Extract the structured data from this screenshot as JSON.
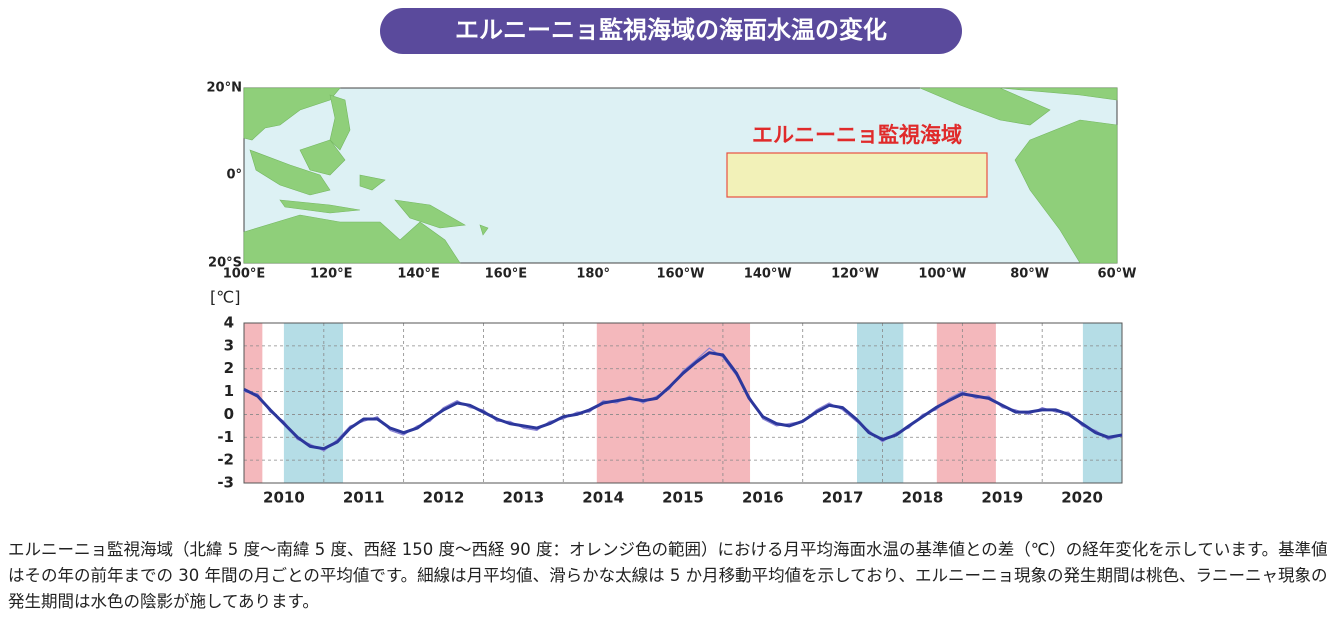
{
  "title": "エルニーニョ監視海域の海面水温の変化",
  "map": {
    "lat_labels": [
      "20°N",
      "0°",
      "20°S"
    ],
    "lon_labels": [
      "100°E",
      "120°E",
      "140°E",
      "160°E",
      "180°",
      "160°W",
      "140°W",
      "120°W",
      "100°W",
      "80°W",
      "60°W"
    ],
    "region_label": "エルニーニョ監視海域"
  },
  "chart_data": {
    "type": "line",
    "y_unit_label": "[℃]",
    "x": [
      2010,
      2010.17,
      2010.33,
      2010.5,
      2010.67,
      2010.83,
      2011,
      2011.17,
      2011.33,
      2011.5,
      2011.67,
      2011.83,
      2012,
      2012.17,
      2012.33,
      2012.5,
      2012.67,
      2012.83,
      2013,
      2013.17,
      2013.33,
      2013.5,
      2013.67,
      2013.83,
      2014,
      2014.17,
      2014.33,
      2014.5,
      2014.67,
      2014.83,
      2015,
      2015.17,
      2015.33,
      2015.5,
      2015.67,
      2015.83,
      2016,
      2016.17,
      2016.33,
      2016.5,
      2016.67,
      2016.83,
      2017,
      2017.17,
      2017.33,
      2017.5,
      2017.67,
      2017.83,
      2018,
      2018.17,
      2018.33,
      2018.5,
      2018.67,
      2018.83,
      2019,
      2019.17,
      2019.33,
      2019.5,
      2019.67,
      2019.83,
      2020,
      2020.17,
      2020.33,
      2020.5,
      2020.67,
      2020.83,
      2021
    ],
    "xlim": [
      2010,
      2021
    ],
    "xticks": [
      {
        "value": 2010.5,
        "label": "2010"
      },
      {
        "value": 2011.5,
        "label": "2011"
      },
      {
        "value": 2012.5,
        "label": "2012"
      },
      {
        "value": 2013.5,
        "label": "2013"
      },
      {
        "value": 2014.5,
        "label": "2014"
      },
      {
        "value": 2015.5,
        "label": "2015"
      },
      {
        "value": 2016.5,
        "label": "2016"
      },
      {
        "value": 2017.5,
        "label": "2017"
      },
      {
        "value": 2018.5,
        "label": "2018"
      },
      {
        "value": 2019.5,
        "label": "2019"
      },
      {
        "value": 2020.5,
        "label": "2020"
      }
    ],
    "x_gridlines": [
      2011,
      2012,
      2013,
      2014,
      2015,
      2016,
      2017,
      2018,
      2019,
      2020
    ],
    "ylim": [
      -3,
      4
    ],
    "yticks": [
      -3,
      -2,
      -1,
      0,
      1,
      2,
      3,
      4
    ],
    "grid": true,
    "shading": [
      {
        "start": 2010,
        "end": 2010.23,
        "color": "#f4b8bc"
      },
      {
        "start": 2010.5,
        "end": 2011.24,
        "color": "#b5dde6"
      },
      {
        "start": 2014.42,
        "end": 2016.34,
        "color": "#f4b8bc"
      },
      {
        "start": 2017.68,
        "end": 2018.26,
        "color": "#b5dde6"
      },
      {
        "start": 2018.68,
        "end": 2019.42,
        "color": "#f4b8bc"
      },
      {
        "start": 2020.51,
        "end": 2021,
        "color": "#b5dde6"
      }
    ],
    "series": [
      {
        "color": "#8c84d4",
        "width": 1.2,
        "values": [
          1.0,
          0.9,
          0.1,
          -0.3,
          -1.1,
          -1.3,
          -1.6,
          -1.1,
          -0.5,
          -0.3,
          -0.1,
          -0.7,
          -0.9,
          -0.5,
          -0.3,
          0.3,
          0.6,
          0.3,
          0.2,
          -0.3,
          -0.3,
          -0.6,
          -0.7,
          -0.3,
          -0.2,
          0.1,
          0.1,
          0.6,
          0.5,
          0.8,
          0.5,
          0.8,
          1.1,
          1.9,
          2.4,
          2.9,
          2.5,
          1.7,
          0.8,
          -0.2,
          -0.5,
          -0.4,
          -0.3,
          0.2,
          0.5,
          0.2,
          -0.3,
          -0.7,
          -1.2,
          -0.8,
          -0.6,
          0.0,
          0.2,
          0.7,
          1.0,
          0.7,
          0.8,
          0.3,
          0.2,
          0.0,
          0.3,
          0.1,
          0.1,
          -0.5,
          -0.7,
          -1.1,
          -0.9
        ]
      },
      {
        "color": "#2c379c",
        "width": 3,
        "values": [
          1.1,
          0.8,
          0.2,
          -0.4,
          -1.0,
          -1.4,
          -1.5,
          -1.2,
          -0.6,
          -0.2,
          -0.2,
          -0.6,
          -0.8,
          -0.6,
          -0.2,
          0.2,
          0.5,
          0.4,
          0.1,
          -0.2,
          -0.4,
          -0.5,
          -0.6,
          -0.4,
          -0.1,
          0.0,
          0.2,
          0.5,
          0.6,
          0.7,
          0.6,
          0.7,
          1.2,
          1.8,
          2.3,
          2.7,
          2.6,
          1.8,
          0.7,
          -0.1,
          -0.4,
          -0.5,
          -0.3,
          0.1,
          0.4,
          0.3,
          -0.2,
          -0.8,
          -1.1,
          -0.9,
          -0.5,
          -0.1,
          0.3,
          0.6,
          0.9,
          0.8,
          0.7,
          0.4,
          0.1,
          0.1,
          0.2,
          0.2,
          0.0,
          -0.4,
          -0.8,
          -1.0,
          -0.9
        ]
      }
    ]
  },
  "caption": "エルニーニョ監視海域（北緯 5 度〜南緯 5 度、西経 150 度〜西経 90 度：オレンジ色の範囲）における月平均海面水温の基準値との差（℃）の経年変化を示しています。基準値はその年の前年までの 30 年間の月ごとの平均値です。細線は月平均値、滑らかな太線は 5 か月移動平均値を示しており、エルニーニョ現象の発生期間は桃色、ラニーニャ現象の発生期間は水色の陰影が施してあります。"
}
